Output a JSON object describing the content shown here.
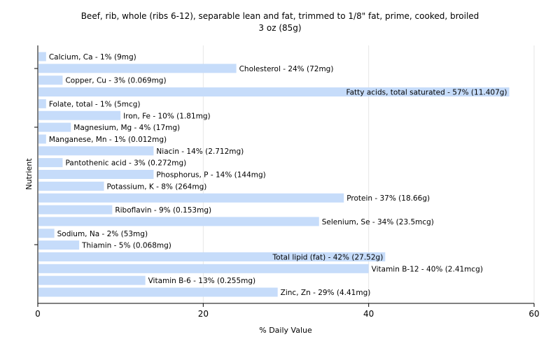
{
  "chart_data": {
    "type": "bar",
    "orientation": "horizontal",
    "title": "Beef, rib, whole (ribs 6-12), separable lean and fat, trimmed to 1/8\" fat, prime, cooked, broiled",
    "subtitle": "3 oz (85g)",
    "xlabel": "% Daily Value",
    "ylabel": "Nutrient",
    "xlim": [
      0,
      60
    ],
    "xticks": [
      "0",
      "20",
      "40",
      "60"
    ],
    "grid": true,
    "bar_color": "#c6dcfa",
    "categories": [
      "Calcium, Ca",
      "Cholesterol",
      "Copper, Cu",
      "Fatty acids, total saturated",
      "Folate, total",
      "Iron, Fe",
      "Magnesium, Mg",
      "Manganese, Mn",
      "Niacin",
      "Pantothenic acid",
      "Phosphorus, P",
      "Potassium, K",
      "Protein",
      "Riboflavin",
      "Selenium, Se",
      "Sodium, Na",
      "Thiamin",
      "Total lipid (fat)",
      "Vitamin B-12",
      "Vitamin B-6",
      "Zinc, Zn"
    ],
    "values": [
      1,
      24,
      3,
      57,
      1,
      10,
      4,
      1,
      14,
      3,
      14,
      8,
      37,
      9,
      34,
      2,
      5,
      42,
      40,
      13,
      29
    ],
    "labels": [
      "Calcium, Ca - 1% (9mg)",
      "Cholesterol - 24% (72mg)",
      "Copper, Cu - 3% (0.069mg)",
      "Fatty acids, total saturated - 57% (11.407g)",
      "Folate, total - 1% (5mcg)",
      "Iron, Fe - 10% (1.81mg)",
      "Magnesium, Mg - 4% (17mg)",
      "Manganese, Mn - 1% (0.012mg)",
      "Niacin - 14% (2.712mg)",
      "Pantothenic acid - 3% (0.272mg)",
      "Phosphorus, P - 14% (144mg)",
      "Potassium, K - 8% (264mg)",
      "Protein - 37% (18.66g)",
      "Riboflavin - 9% (0.153mg)",
      "Selenium, Se - 34% (23.5mcg)",
      "Sodium, Na - 2% (53mg)",
      "Thiamin - 5% (0.068mg)",
      "Total lipid (fat) - 42% (27.52g)",
      "Vitamin B-12 - 40% (2.41mcg)",
      "Vitamin B-6 - 13% (0.255mg)",
      "Zinc, Zn - 29% (4.41mg)"
    ]
  }
}
